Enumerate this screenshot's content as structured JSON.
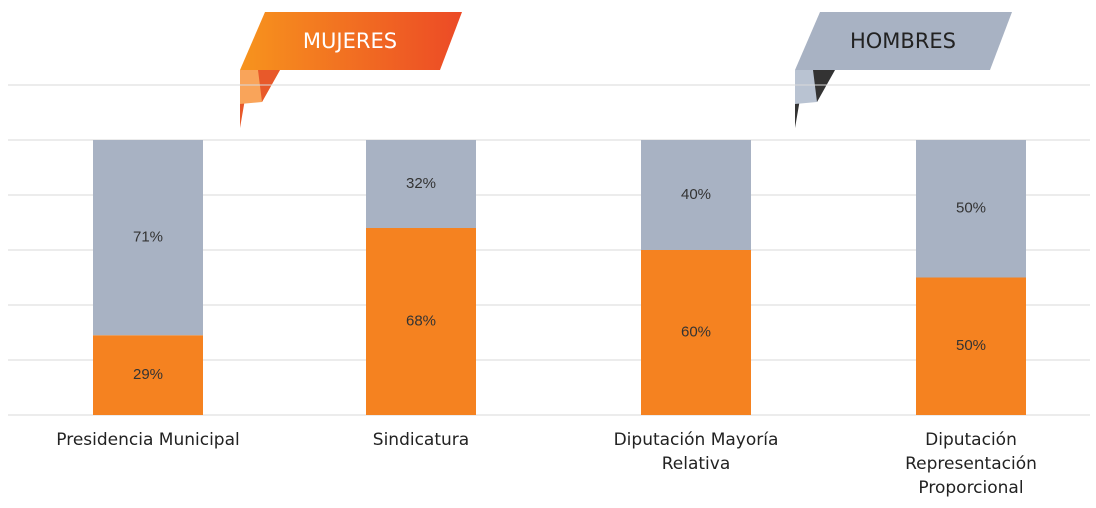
{
  "chart_data": {
    "type": "stacked_bar",
    "categories": [
      "Presidencia Municipal",
      "Sindicatura",
      "Diputación Mayoría Relativa",
      "Diputación Representación Proporcional"
    ],
    "series": [
      {
        "name": "MUJERES",
        "color": "#f58220",
        "values": [
          29,
          68,
          60,
          50
        ],
        "value_labels": [
          "29%",
          "68%",
          "60%",
          "50%"
        ]
      },
      {
        "name": "HOMBRES",
        "color": "#a8b2c3",
        "values": [
          71,
          32,
          40,
          50
        ],
        "value_labels": [
          "71%",
          "32%",
          "40%",
          "50%"
        ]
      }
    ],
    "ylim": [
      0,
      120
    ],
    "yticks": [
      0,
      20,
      40,
      60,
      80,
      100,
      120
    ],
    "grid": true
  }
}
